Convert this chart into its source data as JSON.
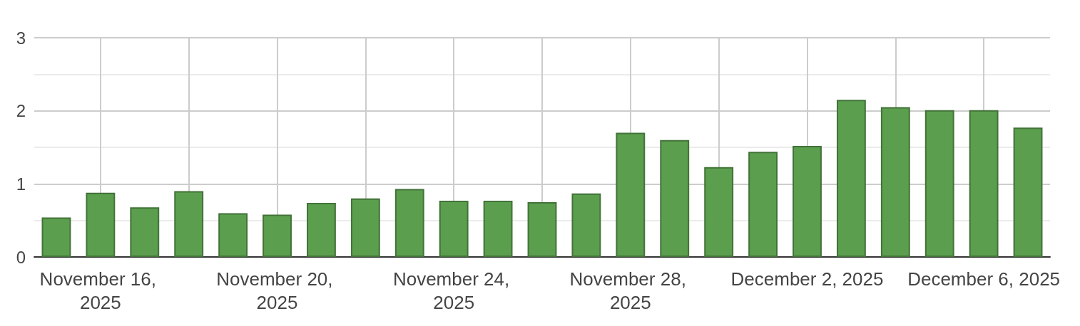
{
  "chart_data": {
    "type": "bar",
    "x": [
      "2025-11-15",
      "2025-11-16",
      "2025-11-17",
      "2025-11-18",
      "2025-11-19",
      "2025-11-20",
      "2025-11-21",
      "2025-11-22",
      "2025-11-23",
      "2025-11-24",
      "2025-11-25",
      "2025-11-26",
      "2025-11-27",
      "2025-11-28",
      "2025-11-29",
      "2025-11-30",
      "2025-12-01",
      "2025-12-02",
      "2025-12-03",
      "2025-12-04",
      "2025-12-05",
      "2025-12-06",
      "2025-12-07"
    ],
    "values": [
      0.54,
      0.88,
      0.68,
      0.9,
      0.6,
      0.58,
      0.74,
      0.8,
      0.93,
      0.77,
      0.77,
      0.75,
      0.87,
      1.7,
      1.6,
      1.23,
      1.44,
      1.52,
      2.15,
      2.05,
      2.01,
      2.01,
      1.77
    ],
    "color": "#5b9f4e",
    "xlim": [
      "2025-11-14T12:00",
      "2025-12-07T12:00"
    ],
    "xticks": [
      {
        "value": "2025-11-16",
        "label": "November 16, 2025"
      },
      {
        "value": "2025-11-18",
        "label": null
      },
      {
        "value": "2025-11-20",
        "label": "November 20, 2025"
      },
      {
        "value": "2025-11-22",
        "label": null
      },
      {
        "value": "2025-11-24",
        "label": "November 24, 2025"
      },
      {
        "value": "2025-11-26",
        "label": null
      },
      {
        "value": "2025-11-28",
        "label": "November 28, 2025"
      },
      {
        "value": "2025-11-30",
        "label": null
      },
      {
        "value": "2025-12-02",
        "label": "December 2, 2025"
      },
      {
        "value": "2025-12-04",
        "label": null
      },
      {
        "value": "2025-12-06",
        "label": "December 6, 2025"
      }
    ],
    "ylim": [
      0,
      3
    ],
    "yticks": [
      0,
      {
        "value": 0.5,
        "label": null
      },
      1,
      {
        "value": 1.5,
        "label": null
      },
      2,
      {
        "value": 2.5,
        "label": null
      },
      3
    ],
    "grid": true
  }
}
